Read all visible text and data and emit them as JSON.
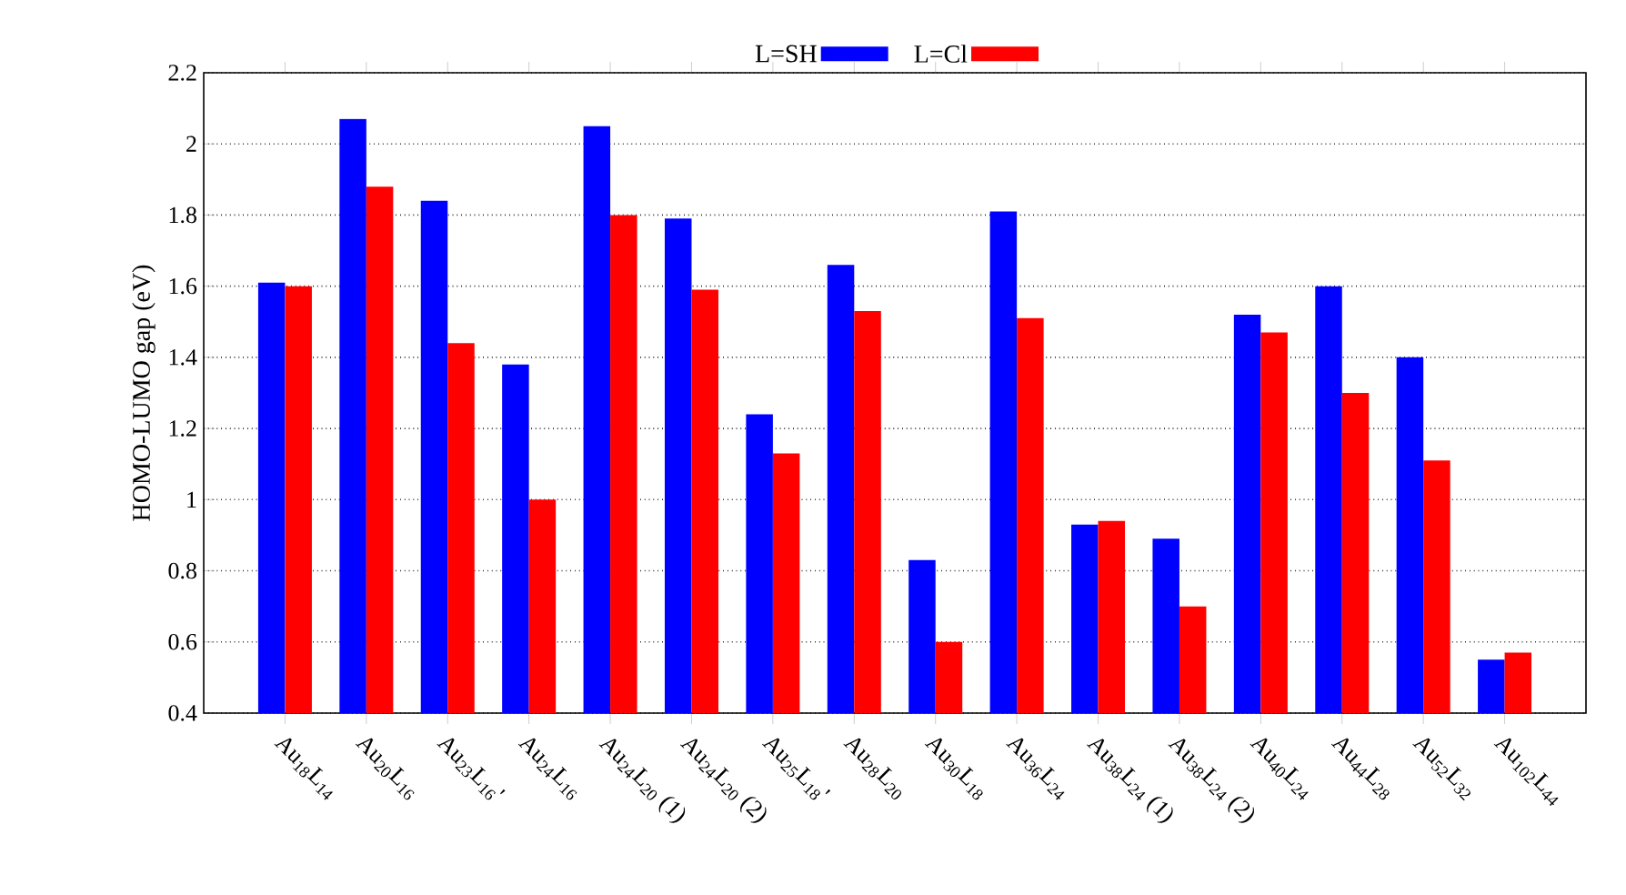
{
  "chart_data": {
    "type": "bar",
    "ylabel": "HOMO-LUMO gap (eV)",
    "categories": [
      "Au$_{18}$L$_{14}$",
      "Au$_{20}$L$_{16}$",
      "Au$_{23}$L$_{16}$'",
      "Au$_{24}$L$_{16}$",
      "Au$_{24}$L$_{20}$ (1)",
      "Au$_{24}$L$_{20}$ (2)",
      "Au$_{25}$L$_{18}$'",
      "Au$_{28}$L$_{20}$",
      "Au$_{30}$L$_{18}$",
      "Au$_{36}$L$_{24}$",
      "Au$_{38}$L$_{24}$ (1)",
      "Au$_{38}$L$_{24}$ (2)",
      "Au$_{40}$L$_{24}$",
      "Au$_{44}$L$_{28}$",
      "Au$_{52}$L$_{32}$",
      "Au$_{102}$L$_{44}$"
    ],
    "series": [
      {
        "name": "L=SH",
        "color": "#0000ff",
        "values": [
          1.61,
          2.07,
          1.84,
          1.38,
          2.05,
          1.79,
          1.24,
          1.66,
          0.83,
          1.81,
          0.93,
          0.89,
          1.52,
          1.6,
          1.4,
          0.55
        ]
      },
      {
        "name": "L=Cl",
        "color": "#ff0000",
        "values": [
          1.6,
          1.88,
          1.44,
          1.0,
          1.8,
          1.59,
          1.13,
          1.53,
          0.6,
          1.51,
          0.94,
          0.7,
          1.47,
          1.3,
          1.11,
          0.57
        ]
      }
    ],
    "ylim": [
      0.4,
      2.2
    ],
    "yticks": [
      0.4,
      0.6,
      0.8,
      1,
      1.2,
      1.4,
      1.6,
      1.8,
      2,
      2.2
    ],
    "grid": "y",
    "legend": "top"
  }
}
